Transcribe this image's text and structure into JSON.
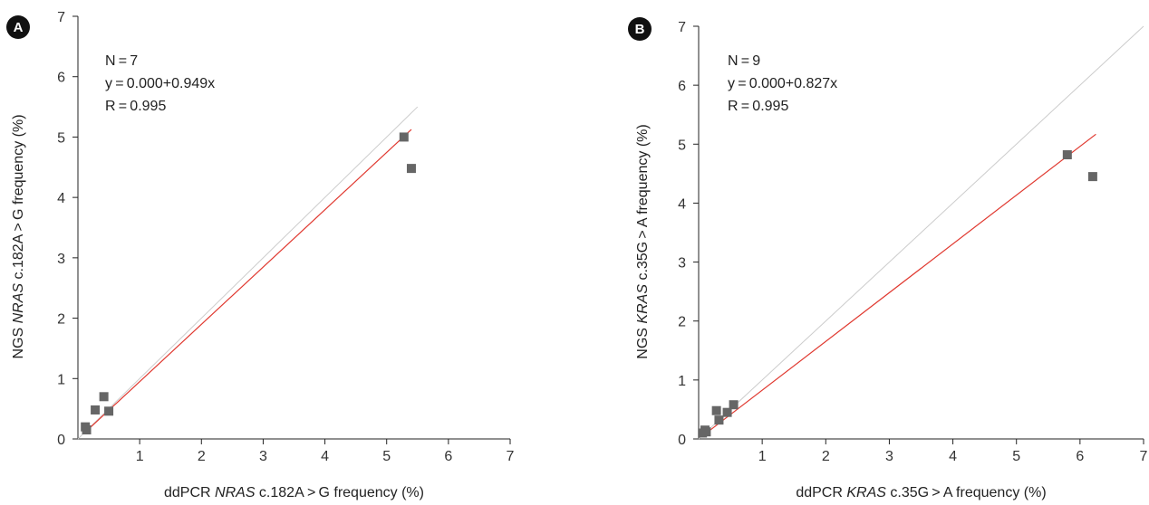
{
  "chart_data": [
    {
      "type": "scatter",
      "panel_label": "A",
      "xlabel": {
        "prefix": "ddPCR ",
        "gene": "NRAS",
        "suffix": " c.182A > G frequency (%)"
      },
      "ylabel": {
        "prefix": "NGS ",
        "gene": "NRAS",
        "suffix": " c.182A > G frequency (%)"
      },
      "xlim": [
        0,
        7
      ],
      "ylim": [
        0,
        7
      ],
      "xticks": [
        "1",
        "2",
        "3",
        "4",
        "5",
        "6",
        "7"
      ],
      "yticks": [
        "0",
        "1",
        "2",
        "3",
        "4",
        "5",
        "6",
        "7"
      ],
      "annotations": [
        "N = 7",
        "y = 0.000+0.949x",
        "R = 0.995"
      ],
      "points": [
        {
          "x": 0.12,
          "y": 0.2
        },
        {
          "x": 0.14,
          "y": 0.15
        },
        {
          "x": 0.28,
          "y": 0.48
        },
        {
          "x": 0.42,
          "y": 0.7
        },
        {
          "x": 0.5,
          "y": 0.46
        },
        {
          "x": 5.28,
          "y": 5.0
        },
        {
          "x": 5.4,
          "y": 4.48
        }
      ],
      "regression": {
        "intercept": 0.0,
        "slope": 0.949,
        "x_range": [
          0.1,
          5.4
        ],
        "color": "#e0382f"
      },
      "identity_line": {
        "x_range": [
          0,
          5.5
        ],
        "color": "#cccccc"
      },
      "marker_color": "#666666"
    },
    {
      "type": "scatter",
      "panel_label": "B",
      "xlabel": {
        "prefix": "ddPCR ",
        "gene": "KRAS",
        "suffix": " c.35G > A frequency (%)"
      },
      "ylabel": {
        "prefix": "NGS ",
        "gene": "KRAS",
        "suffix": " c.35G > A frequency (%)"
      },
      "xlim": [
        0,
        7
      ],
      "ylim": [
        0,
        7
      ],
      "xticks": [
        "1",
        "2",
        "3",
        "4",
        "5",
        "6",
        "7"
      ],
      "yticks": [
        "0",
        "1",
        "2",
        "3",
        "4",
        "5",
        "6",
        "7"
      ],
      "annotations": [
        "N = 9",
        "y = 0.000+0.827x",
        "R = 0.995"
      ],
      "points": [
        {
          "x": 0.06,
          "y": 0.1
        },
        {
          "x": 0.1,
          "y": 0.15
        },
        {
          "x": 0.12,
          "y": 0.12
        },
        {
          "x": 0.28,
          "y": 0.48
        },
        {
          "x": 0.32,
          "y": 0.32
        },
        {
          "x": 0.45,
          "y": 0.45
        },
        {
          "x": 0.55,
          "y": 0.58
        },
        {
          "x": 5.8,
          "y": 4.82
        },
        {
          "x": 6.2,
          "y": 4.45
        }
      ],
      "regression": {
        "intercept": 0.0,
        "slope": 0.827,
        "x_range": [
          0.05,
          6.25
        ],
        "color": "#e0382f"
      },
      "identity_line": {
        "x_range": [
          0,
          7
        ],
        "color": "#cccccc"
      },
      "marker_color": "#666666"
    }
  ]
}
